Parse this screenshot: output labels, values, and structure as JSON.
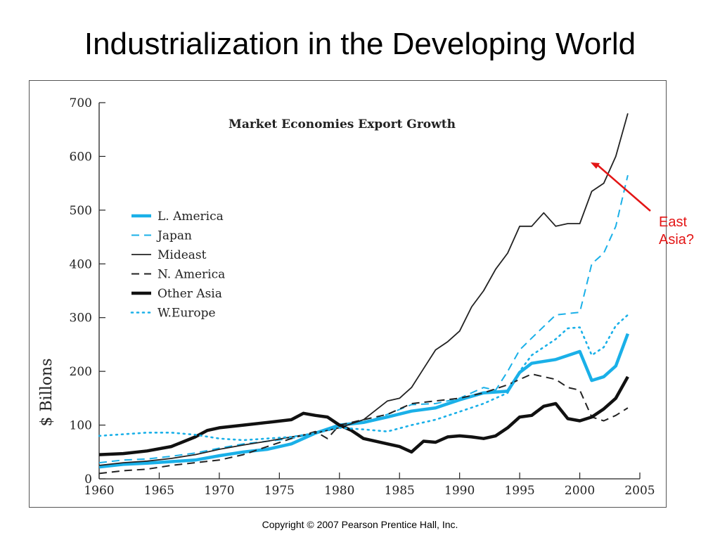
{
  "slide": {
    "title": "Industrialization in the Developing World",
    "copyright": "Copyright © 2007 Pearson Prentice Hall, Inc.",
    "annotation_lines": [
      "East",
      "Asia?"
    ],
    "annotation_color": "#e31515"
  },
  "chart_data": {
    "type": "line",
    "title": "Market Economies Export Growth",
    "xlabel": "",
    "ylabel": "$ Billons",
    "xlim": [
      1960,
      2005
    ],
    "ylim": [
      0,
      700
    ],
    "x_ticks": [
      1960,
      1965,
      1970,
      1975,
      1980,
      1985,
      1990,
      1995,
      2000,
      2005
    ],
    "y_ticks": [
      0,
      100,
      200,
      300,
      400,
      500,
      600,
      700
    ],
    "grid": false,
    "legend_position": "left",
    "series": [
      {
        "name": "L. America",
        "color": "#1ab0e8",
        "style": "thick",
        "x": [
          1960,
          1962,
          1964,
          1966,
          1968,
          1970,
          1972,
          1974,
          1976,
          1978,
          1980,
          1982,
          1984,
          1986,
          1988,
          1990,
          1992,
          1994,
          1995,
          1996,
          1998,
          2000,
          2001,
          2002,
          2003,
          2004
        ],
        "y": [
          22,
          27,
          29,
          32,
          35,
          43,
          50,
          55,
          65,
          85,
          100,
          105,
          115,
          126,
          132,
          147,
          160,
          163,
          198,
          215,
          222,
          237,
          183,
          190,
          210,
          270
        ]
      },
      {
        "name": "Japan",
        "color": "#1ab0e8",
        "style": "dashed",
        "x": [
          1960,
          1962,
          1964,
          1966,
          1968,
          1970,
          1972,
          1974,
          1976,
          1978,
          1980,
          1982,
          1984,
          1986,
          1988,
          1990,
          1992,
          1993,
          1994,
          1995,
          1996,
          1998,
          2000,
          2001,
          2002,
          2003,
          2004
        ],
        "y": [
          30,
          35,
          37,
          42,
          48,
          57,
          65,
          70,
          75,
          85,
          100,
          104,
          120,
          138,
          140,
          150,
          170,
          165,
          200,
          240,
          262,
          305,
          310,
          400,
          420,
          470,
          565
        ]
      },
      {
        "name": "Mideast",
        "color": "#222222",
        "style": "thin",
        "x": [
          1960,
          1962,
          1964,
          1966,
          1968,
          1970,
          1972,
          1974,
          1976,
          1978,
          1980,
          1982,
          1984,
          1985,
          1986,
          1987,
          1988,
          1989,
          1990,
          1991,
          1992,
          1993,
          1994,
          1995,
          1996,
          1997,
          1998,
          1999,
          2000,
          2001,
          2002,
          2003,
          2004
        ],
        "y": [
          25,
          30,
          33,
          38,
          45,
          55,
          63,
          70,
          78,
          85,
          95,
          110,
          145,
          150,
          170,
          205,
          240,
          255,
          275,
          320,
          350,
          390,
          420,
          470,
          470,
          495,
          470,
          475,
          475,
          535,
          550,
          600,
          680
        ]
      },
      {
        "name": "N. America",
        "color": "#222222",
        "style": "dashed",
        "x": [
          1960,
          1962,
          1964,
          1966,
          1968,
          1970,
          1972,
          1974,
          1976,
          1978,
          1979,
          1980,
          1982,
          1984,
          1986,
          1988,
          1990,
          1992,
          1994,
          1996,
          1998,
          1999,
          2000,
          2001,
          2002,
          2003,
          2004
        ],
        "y": [
          10,
          15,
          18,
          25,
          30,
          35,
          45,
          60,
          75,
          88,
          75,
          100,
          110,
          120,
          140,
          145,
          150,
          160,
          175,
          195,
          185,
          170,
          165,
          115,
          108,
          118,
          132
        ]
      },
      {
        "name": "Other Asia",
        "color": "#111111",
        "style": "thick",
        "x": [
          1960,
          1962,
          1964,
          1966,
          1968,
          1969,
          1970,
          1972,
          1974,
          1976,
          1977,
          1978,
          1979,
          1980,
          1981,
          1982,
          1984,
          1985,
          1986,
          1987,
          1988,
          1989,
          1990,
          1991,
          1992,
          1993,
          1994,
          1995,
          1996,
          1997,
          1998,
          1999,
          2000,
          2001,
          2002,
          2003,
          2004
        ],
        "y": [
          45,
          47,
          52,
          60,
          78,
          90,
          95,
          100,
          105,
          110,
          122,
          118,
          115,
          100,
          90,
          75,
          65,
          60,
          50,
          70,
          68,
          78,
          80,
          78,
          75,
          80,
          95,
          115,
          118,
          135,
          140,
          112,
          108,
          115,
          130,
          150,
          190
        ]
      },
      {
        "name": "W.Europe",
        "color": "#1ab0e8",
        "style": "dotted",
        "x": [
          1960,
          1962,
          1964,
          1966,
          1968,
          1970,
          1972,
          1974,
          1976,
          1978,
          1980,
          1982,
          1984,
          1986,
          1988,
          1990,
          1992,
          1994,
          1995,
          1996,
          1998,
          1999,
          2000,
          2001,
          2002,
          2003,
          2004
        ],
        "y": [
          80,
          83,
          86,
          86,
          82,
          75,
          72,
          75,
          78,
          85,
          95,
          92,
          88,
          100,
          110,
          125,
          140,
          160,
          200,
          230,
          260,
          280,
          282,
          230,
          245,
          285,
          305
        ]
      }
    ]
  }
}
